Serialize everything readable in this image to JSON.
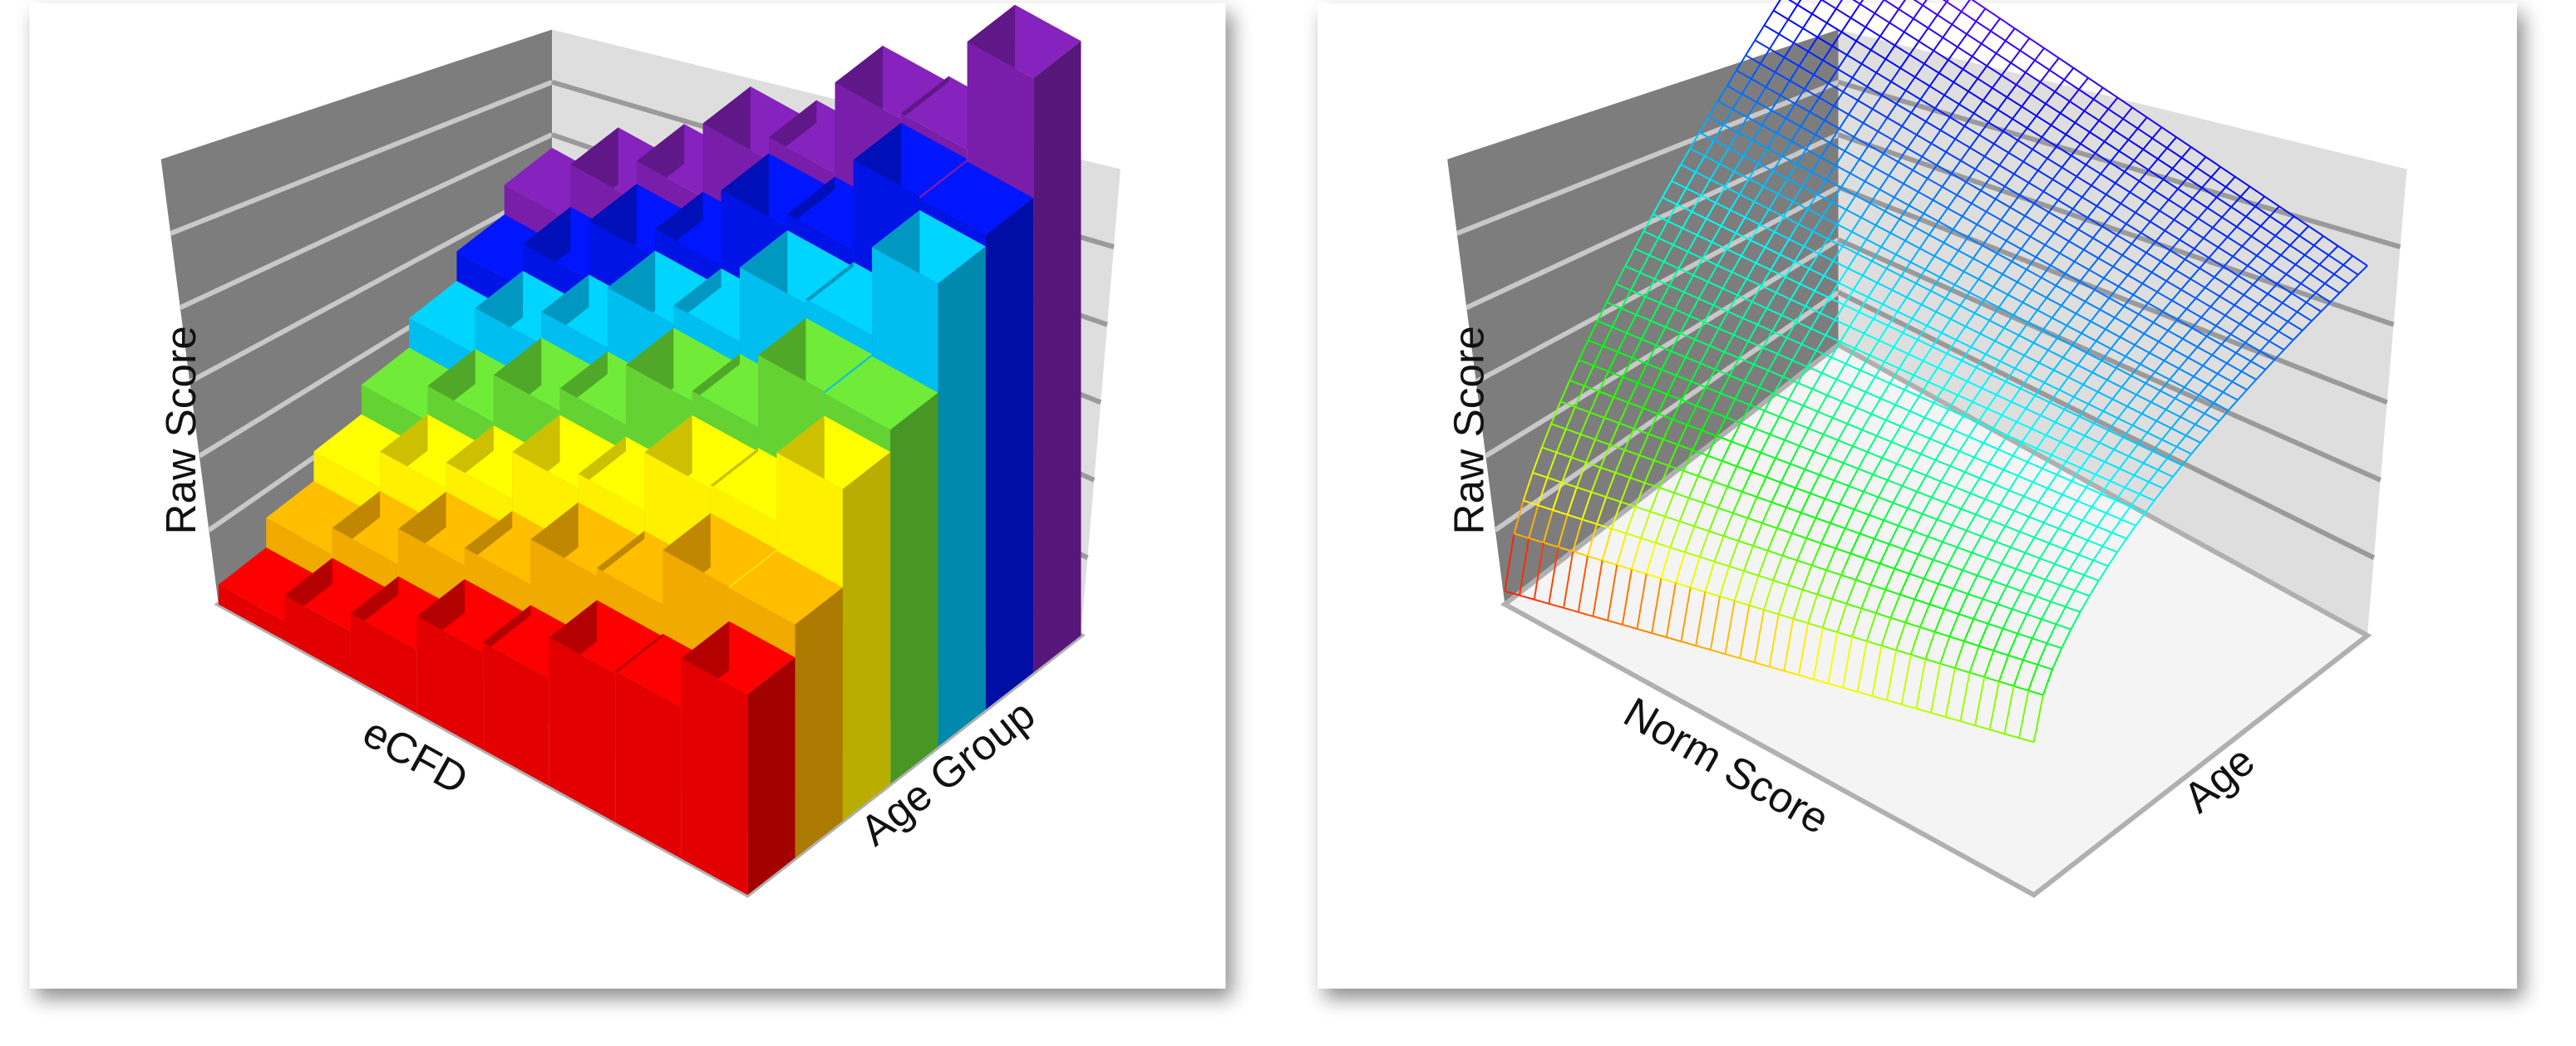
{
  "panels": [
    {
      "z_label": "Raw Score",
      "x_label": "eCFD",
      "y_label": "Age Group"
    },
    {
      "z_label": "Raw Score",
      "x_label": "Norm Score",
      "y_label": "Age"
    }
  ]
}
